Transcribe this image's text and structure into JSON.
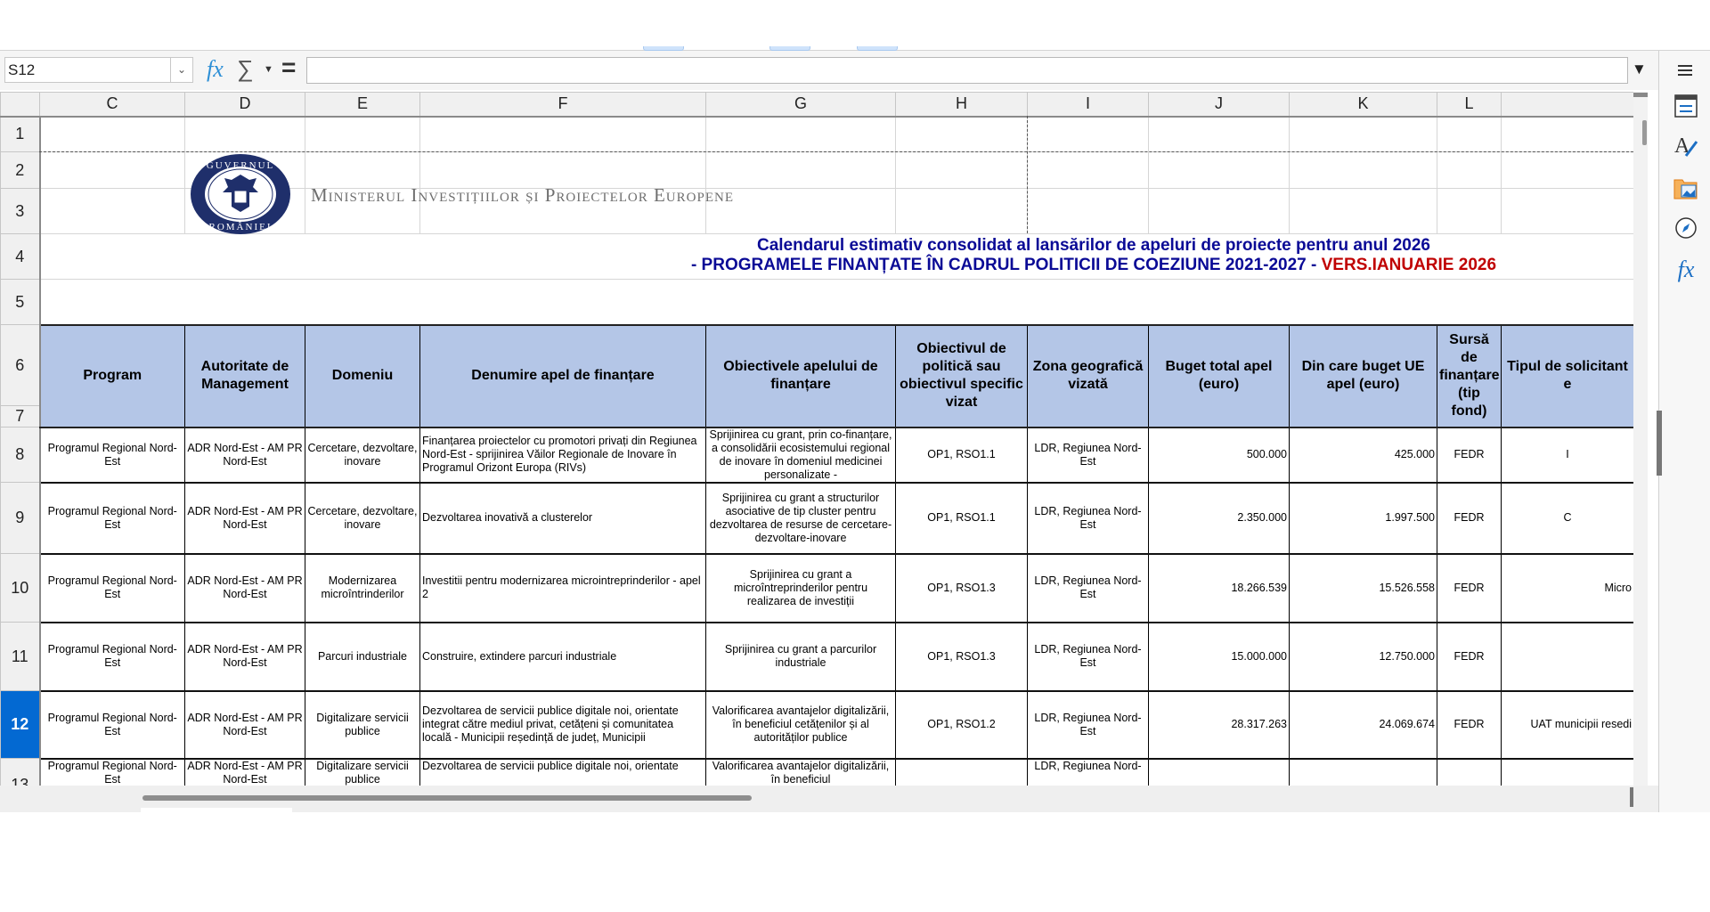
{
  "formula_bar": {
    "cell_reference": "S12",
    "formula_value": "",
    "icons": [
      "function-wizard-icon",
      "sum-icon",
      "equals-icon",
      "expand-icon"
    ]
  },
  "sidebar": {
    "icons": [
      "menu-icon",
      "properties-icon",
      "styles-icon",
      "gallery-icon",
      "navigator-icon",
      "functions-icon"
    ]
  },
  "columns": [
    "C",
    "D",
    "E",
    "F",
    "G",
    "H",
    "I",
    "J",
    "K",
    "L",
    ""
  ],
  "row_numbers": [
    "1",
    "2",
    "3",
    "4",
    "5",
    "6",
    "7",
    "8",
    "9",
    "10",
    "11",
    "12",
    "13"
  ],
  "selected_row": "12",
  "header_block": {
    "ministry": "Ministerul Investițiilor și Proiectelor Europene",
    "logo_text": "Guvernul României",
    "title_line1": "Calendarul estimativ consolidat al lansărilor de apeluri de proiecte pentru anul 2026",
    "title_line2": "- PROGRAMELE FINANȚATE ÎN CADRUL POLITICII DE COEZIUNE 2021-2027 - ",
    "title_version": "VERS.IANUARIE 2026",
    "title_color": "#0a0a96",
    "version_color": "#c00000"
  },
  "table": {
    "header_color": "#b4c6e7",
    "headers": [
      "Program",
      "Autoritate de Management",
      "Domeniu",
      "Denumire apel de finanțare",
      "Obiectivele apelului de finanțare",
      "Obiectivul de politică sau obiectivul specific vizat",
      "Zona geografică vizată",
      "Buget total apel (euro)",
      "Din care buget UE apel (euro)",
      "Sursă de finanțare (tip fond)",
      "Tipul de solicitant e"
    ],
    "rows": [
      [
        "Programul Regional Nord-Est",
        "ADR Nord-Est - AM PR Nord-Est",
        "Cercetare, dezvoltare, inovare",
        "Finanțarea proiectelor cu promotori privați din Regiunea Nord-Est - sprijinirea Văilor Regionale de Inovare în Programul Orizont Europa (RIVs)",
        "Sprijinirea cu grant, prin co-finanțare, a consolidării ecosistemului regional de inovare în domeniul medicinei personalizate -",
        "OP1, RSO1.1",
        "LDR, Regiunea Nord-Est",
        "500.000",
        "425.000",
        "FEDR",
        "I"
      ],
      [
        "Programul Regional Nord-Est",
        "ADR Nord-Est - AM PR Nord-Est",
        "Cercetare, dezvoltare, inovare",
        "Dezvoltarea inovativă a clusterelor",
        "Sprijinirea cu grant a structurilor asociative de tip cluster pentru dezvoltarea de resurse de cercetare-dezvoltare-inovare",
        "OP1, RSO1.1",
        "LDR, Regiunea Nord-Est",
        "2.350.000",
        "1.997.500",
        "FEDR",
        "C"
      ],
      [
        "Programul Regional Nord-Est",
        "ADR Nord-Est - AM PR Nord-Est",
        "Modernizarea microîntrinderilor",
        "Investitii pentru modernizarea microintreprinderilor  - apel 2",
        "Sprijinirea cu grant a microîntreprinderilor pentru realizarea de investiții",
        "OP1, RSO1.3",
        "LDR, Regiunea Nord-Est",
        "18.266.539",
        "15.526.558",
        "FEDR",
        "Micro"
      ],
      [
        "Programul Regional Nord-Est",
        "ADR Nord-Est - AM PR Nord-Est",
        "Parcuri industriale",
        "Construire, extindere parcuri industriale",
        "Sprijinirea cu grant a parcurilor industriale",
        "OP1, RSO1.3",
        "LDR, Regiunea Nord-Est",
        "15.000.000",
        "12.750.000",
        "FEDR",
        ""
      ],
      [
        "Programul Regional Nord-Est",
        "ADR Nord-Est - AM PR Nord-Est",
        "Digitalizare servicii publice",
        "Dezvoltarea de servicii publice digitale noi, orientate integrat către mediul privat, cetățeni și comunitatea locală - Municipii reședință de județ, Municipii",
        "Valorificarea avantajelor digitalizării, în beneficiul cetățenilor și al autorităților publice",
        "OP1, RSO1.2",
        "LDR, Regiunea Nord-Est",
        "28.317.263",
        "24.069.674",
        "FEDR",
        "UAT municipii resedi"
      ],
      [
        "Programul Regional Nord-Est",
        "ADR Nord-Est - AM PR Nord-Est",
        "Digitalizare servicii publice",
        "Dezvoltarea de servicii publice digitale noi, orientate",
        "Valorificarea avantajelor digitalizării, în beneficiul",
        "",
        "LDR, Regiunea Nord-",
        "",
        "",
        "",
        ""
      ]
    ]
  }
}
